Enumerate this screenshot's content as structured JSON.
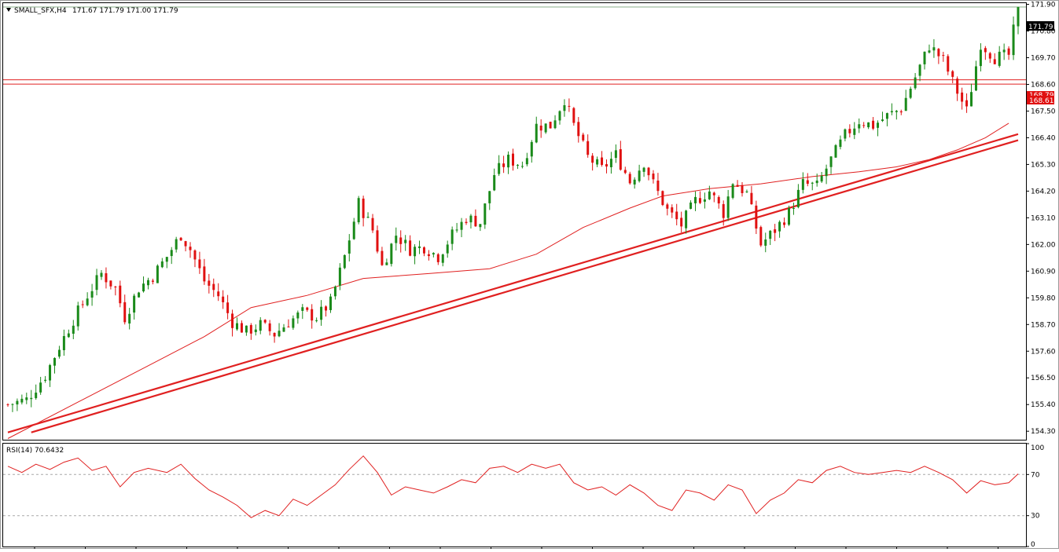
{
  "header": {
    "symbol": "SMALL_SFX,H4",
    "ohlc": "171.67 171.79 171.00 171.79"
  },
  "price_panel": {
    "last_price_label": "171.79",
    "level_labels": [
      "168.79",
      "168.61"
    ]
  },
  "rsi_panel": {
    "label": "RSI(14) 70.6432"
  },
  "colors": {
    "bull": "#1a8a1a",
    "bear": "#e01010",
    "line": "#e02020",
    "text": "#000000"
  },
  "chart_data": [
    {
      "type": "candlestick",
      "title": "SMALL_SFX,H4",
      "ylim": [
        153.95,
        171.95
      ],
      "yticks": [
        "171.90",
        "170.80",
        "169.70",
        "168.60",
        "167.50",
        "166.40",
        "165.30",
        "164.20",
        "163.10",
        "162.00",
        "160.90",
        "159.80",
        "158.70",
        "157.60",
        "156.50",
        "155.40",
        "154.30"
      ],
      "horizontal_levels": [
        168.79,
        168.61
      ],
      "last_price": 171.79,
      "close_path": [
        [
          0,
          155.4
        ],
        [
          4,
          155.6
        ],
        [
          8,
          156.6
        ],
        [
          11,
          157.8
        ],
        [
          14,
          158.9
        ],
        [
          17,
          159.9
        ],
        [
          20,
          160.8
        ],
        [
          23,
          160.2
        ],
        [
          25,
          159.0
        ],
        [
          28,
          160.2
        ],
        [
          31,
          160.7
        ],
        [
          34,
          161.5
        ],
        [
          37,
          162.4
        ],
        [
          39,
          161.8
        ],
        [
          42,
          160.5
        ],
        [
          45,
          159.9
        ],
        [
          48,
          158.8
        ],
        [
          51,
          158.4
        ],
        [
          54,
          158.7
        ],
        [
          57,
          158.3
        ],
        [
          60,
          158.8
        ],
        [
          63,
          159.2
        ],
        [
          66,
          159.0
        ],
        [
          69,
          159.6
        ],
        [
          72,
          161.5
        ],
        [
          75,
          163.7
        ],
        [
          78,
          162.6
        ],
        [
          80,
          161.1
        ],
        [
          83,
          162.4
        ],
        [
          86,
          161.8
        ],
        [
          89,
          161.9
        ],
        [
          92,
          161.5
        ],
        [
          95,
          162.4
        ],
        [
          98,
          163.1
        ],
        [
          101,
          162.9
        ],
        [
          104,
          164.9
        ],
        [
          107,
          165.5
        ],
        [
          110,
          165.3
        ],
        [
          113,
          166.9
        ],
        [
          116,
          166.9
        ],
        [
          119,
          168.0
        ],
        [
          121,
          166.9
        ],
        [
          124,
          165.6
        ],
        [
          127,
          165.1
        ],
        [
          130,
          165.7
        ],
        [
          133,
          164.6
        ],
        [
          136,
          165.4
        ],
        [
          138,
          164.5
        ],
        [
          141,
          163.4
        ],
        [
          144,
          162.8
        ],
        [
          147,
          163.8
        ],
        [
          150,
          164.2
        ],
        [
          153,
          163.3
        ],
        [
          155,
          164.6
        ],
        [
          158,
          164.1
        ],
        [
          161,
          162.0
        ],
        [
          164,
          162.6
        ],
        [
          167,
          163.3
        ],
        [
          170,
          164.5
        ],
        [
          173,
          164.4
        ],
        [
          176,
          165.5
        ],
        [
          179,
          166.5
        ],
        [
          182,
          167.1
        ],
        [
          185,
          166.9
        ],
        [
          188,
          167.3
        ],
        [
          191,
          167.6
        ],
        [
          194,
          168.9
        ],
        [
          197,
          170.2
        ],
        [
          200,
          169.6
        ],
        [
          202,
          168.7
        ],
        [
          205,
          167.5
        ],
        [
          208,
          170.3
        ],
        [
          211,
          169.7
        ],
        [
          214,
          169.8
        ],
        [
          216,
          171.79
        ]
      ],
      "moving_average": [
        [
          0,
          154.0
        ],
        [
          15,
          155.5
        ],
        [
          30,
          157.0
        ],
        [
          42,
          158.2
        ],
        [
          52,
          159.4
        ],
        [
          64,
          159.9
        ],
        [
          76,
          160.6
        ],
        [
          90,
          160.8
        ],
        [
          103,
          161.0
        ],
        [
          113,
          161.6
        ],
        [
          123,
          162.7
        ],
        [
          133,
          163.5
        ],
        [
          140,
          164.0
        ],
        [
          150,
          164.3
        ],
        [
          161,
          164.5
        ],
        [
          172,
          164.8
        ],
        [
          182,
          165.0
        ],
        [
          190,
          165.2
        ],
        [
          197,
          165.5
        ],
        [
          203,
          165.9
        ],
        [
          209,
          166.4
        ],
        [
          214,
          167.0
        ]
      ],
      "trendlines": [
        {
          "from": [
            0,
            154.25
          ],
          "to": [
            216,
            166.55
          ]
        },
        {
          "from": [
            5,
            154.25
          ],
          "to": [
            216,
            166.3
          ]
        }
      ]
    },
    {
      "type": "line",
      "title": "RSI(14) 70.6432",
      "ylim": [
        0,
        100
      ],
      "yticks": [
        "100",
        "70",
        "30",
        "0"
      ],
      "levels": [
        70,
        30
      ],
      "values": [
        [
          0,
          78
        ],
        [
          3,
          72
        ],
        [
          6,
          80
        ],
        [
          9,
          75
        ],
        [
          12,
          82
        ],
        [
          15,
          86
        ],
        [
          18,
          74
        ],
        [
          21,
          78
        ],
        [
          24,
          58
        ],
        [
          27,
          72
        ],
        [
          30,
          76
        ],
        [
          34,
          72
        ],
        [
          37,
          80
        ],
        [
          40,
          66
        ],
        [
          43,
          55
        ],
        [
          46,
          48
        ],
        [
          49,
          40
        ],
        [
          52,
          28
        ],
        [
          55,
          35
        ],
        [
          58,
          30
        ],
        [
          61,
          46
        ],
        [
          64,
          40
        ],
        [
          67,
          50
        ],
        [
          70,
          60
        ],
        [
          73,
          75
        ],
        [
          76,
          88
        ],
        [
          79,
          72
        ],
        [
          82,
          50
        ],
        [
          85,
          58
        ],
        [
          88,
          55
        ],
        [
          91,
          52
        ],
        [
          94,
          58
        ],
        [
          97,
          65
        ],
        [
          100,
          62
        ],
        [
          103,
          76
        ],
        [
          106,
          78
        ],
        [
          109,
          72
        ],
        [
          112,
          80
        ],
        [
          115,
          76
        ],
        [
          118,
          80
        ],
        [
          121,
          62
        ],
        [
          124,
          55
        ],
        [
          127,
          58
        ],
        [
          130,
          50
        ],
        [
          133,
          60
        ],
        [
          136,
          52
        ],
        [
          139,
          40
        ],
        [
          142,
          35
        ],
        [
          145,
          55
        ],
        [
          148,
          52
        ],
        [
          151,
          45
        ],
        [
          154,
          60
        ],
        [
          157,
          55
        ],
        [
          160,
          32
        ],
        [
          163,
          45
        ],
        [
          166,
          52
        ],
        [
          169,
          65
        ],
        [
          172,
          62
        ],
        [
          175,
          74
        ],
        [
          178,
          78
        ],
        [
          181,
          72
        ],
        [
          184,
          70
        ],
        [
          187,
          72
        ],
        [
          190,
          74
        ],
        [
          193,
          72
        ],
        [
          196,
          78
        ],
        [
          199,
          72
        ],
        [
          202,
          65
        ],
        [
          205,
          52
        ],
        [
          208,
          64
        ],
        [
          211,
          60
        ],
        [
          214,
          62
        ],
        [
          216,
          70.6
        ]
      ]
    }
  ]
}
